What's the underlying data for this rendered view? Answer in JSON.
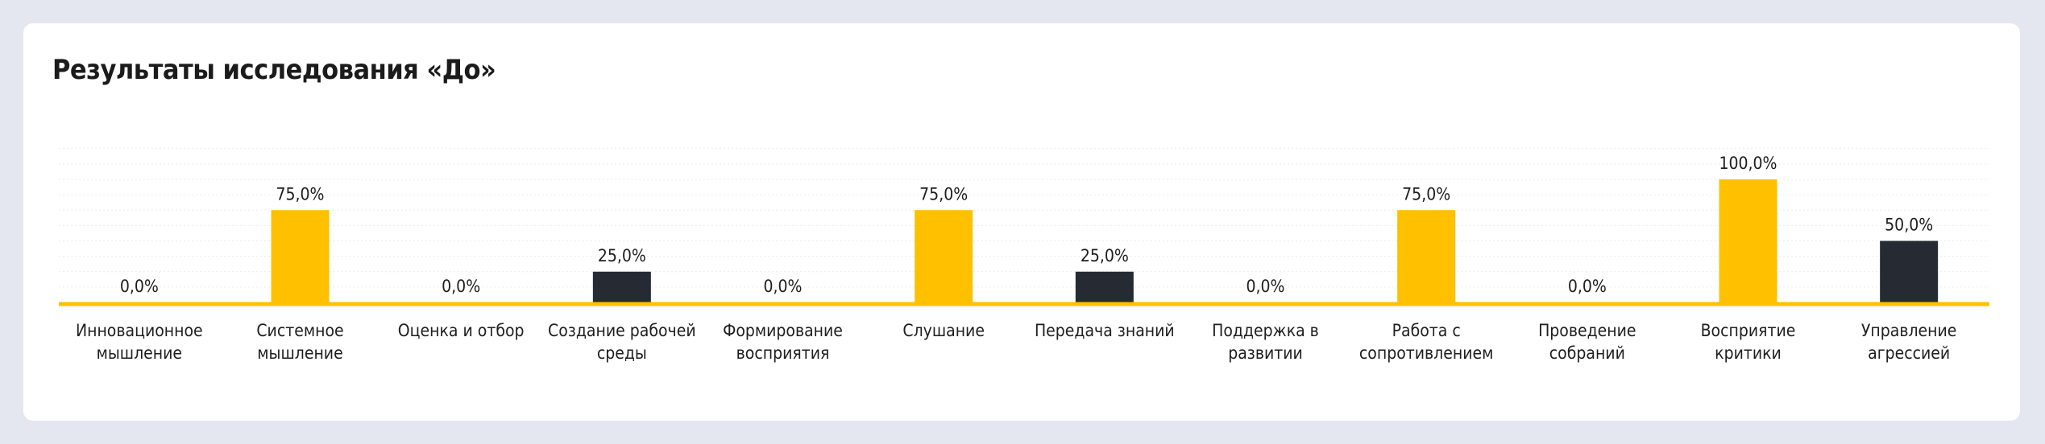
{
  "card": {
    "title": "Результаты исследования «До»"
  },
  "colors": {
    "yellow": "#ffc000",
    "dark": "#262b33",
    "axis": "#ffc000",
    "grid": "#ececec"
  },
  "chart_data": {
    "type": "bar",
    "title": "Результаты исследования «До»",
    "xlabel": "",
    "ylabel": "",
    "ylim": [
      0,
      100
    ],
    "grid": true,
    "legend": "none",
    "categories": [
      [
        "Инновационное",
        "мышление"
      ],
      [
        "Системное",
        "мышление"
      ],
      [
        "Оценка и отбор"
      ],
      [
        "Создание рабочей",
        "среды"
      ],
      [
        "Формирование",
        "восприятия"
      ],
      [
        "Слушание"
      ],
      [
        "Передача знаний"
      ],
      [
        "Поддержка в",
        "развитии"
      ],
      [
        "Работа с",
        "сопротивлением"
      ],
      [
        "Проведение",
        "собраний"
      ],
      [
        "Восприятие",
        "критики"
      ],
      [
        "Управление",
        "агрессией"
      ]
    ],
    "values": [
      0,
      75,
      0,
      25,
      0,
      75,
      25,
      0,
      75,
      0,
      100,
      50
    ],
    "value_labels": [
      "0,0%",
      "75,0%",
      "0,0%",
      "25,0%",
      "0,0%",
      "75,0%",
      "25,0%",
      "0,0%",
      "75,0%",
      "0,0%",
      "100,0%",
      "50,0%"
    ],
    "bar_colors": [
      "yellow",
      "yellow",
      "yellow",
      "dark",
      "yellow",
      "yellow",
      "dark",
      "yellow",
      "yellow",
      "yellow",
      "yellow",
      "dark"
    ]
  }
}
